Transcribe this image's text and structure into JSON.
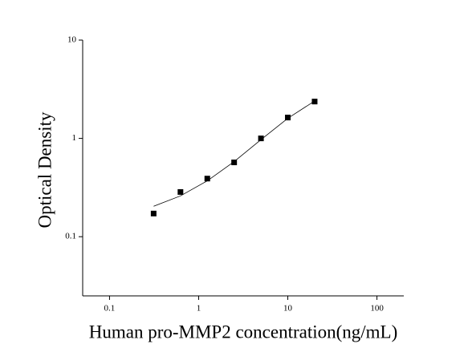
{
  "chart_data": {
    "type": "scatter",
    "x_label": "Human pro-MMP2 concentration(ng/mL)",
    "y_label": "Optical Density",
    "log_x": true,
    "log_y": true,
    "xlim": [
      0.05,
      200
    ],
    "ylim": [
      0.025,
      10
    ],
    "xticks": [
      0.1,
      1,
      10,
      100
    ],
    "yticks": [
      0.1,
      1,
      10
    ],
    "series": [
      {
        "mode": "markers",
        "color": "#000000",
        "x": [
          0.3125,
          0.625,
          1.25,
          2.5,
          5,
          10,
          20
        ],
        "values": [
          0.172,
          0.285,
          0.39,
          0.57,
          1.0,
          1.63,
          2.37
        ]
      },
      {
        "mode": "line",
        "color": "#000000",
        "x": [
          0.3125,
          0.625,
          1.25,
          2.5,
          5,
          10,
          20
        ],
        "values": [
          0.204,
          0.26,
          0.37,
          0.58,
          0.97,
          1.6,
          2.4
        ]
      }
    ]
  }
}
